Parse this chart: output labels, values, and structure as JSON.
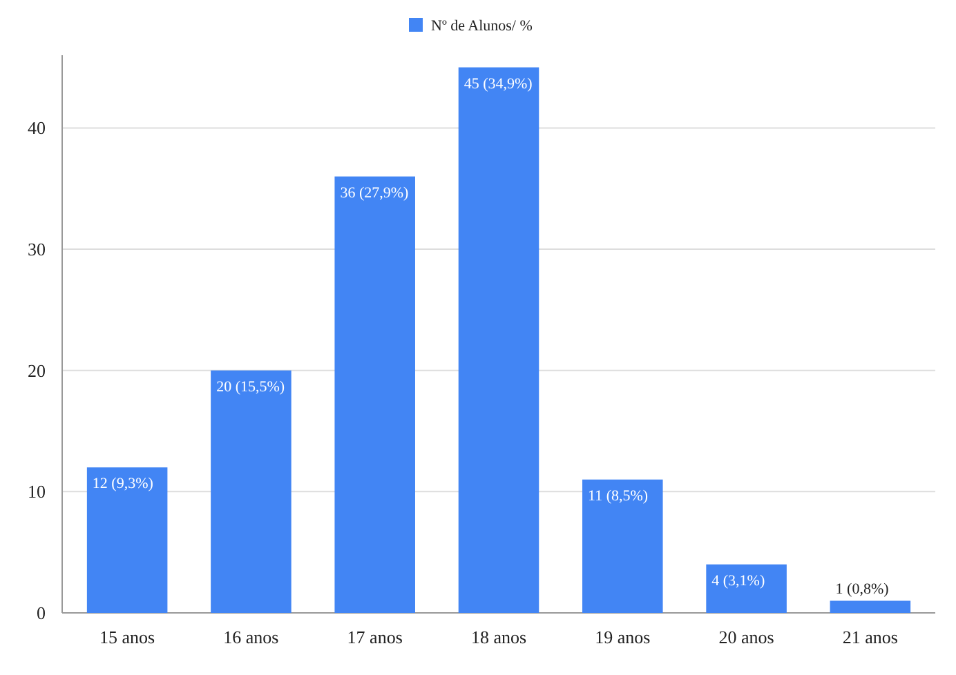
{
  "chart_data": {
    "type": "bar",
    "categories": [
      "15 anos",
      "16 anos",
      "17 anos",
      "18 anos",
      "19 anos",
      "20 anos",
      "21 anos"
    ],
    "series": [
      {
        "name": "Nº de Alunos/ %",
        "color": "#4285f4",
        "values": [
          12,
          20,
          36,
          45,
          11,
          4,
          1
        ]
      }
    ],
    "value_labels": [
      "12 (9,3%)",
      "20 (15,5%)",
      "36 (27,9%)",
      "45 (34,9%)",
      "11 (8,5%)",
      "4 (3,1%)",
      "1 (0,8%)"
    ],
    "ylim": [
      0,
      46
    ],
    "yticks": [
      0,
      10,
      20,
      30,
      40
    ],
    "grid": "y",
    "legend": "top"
  }
}
